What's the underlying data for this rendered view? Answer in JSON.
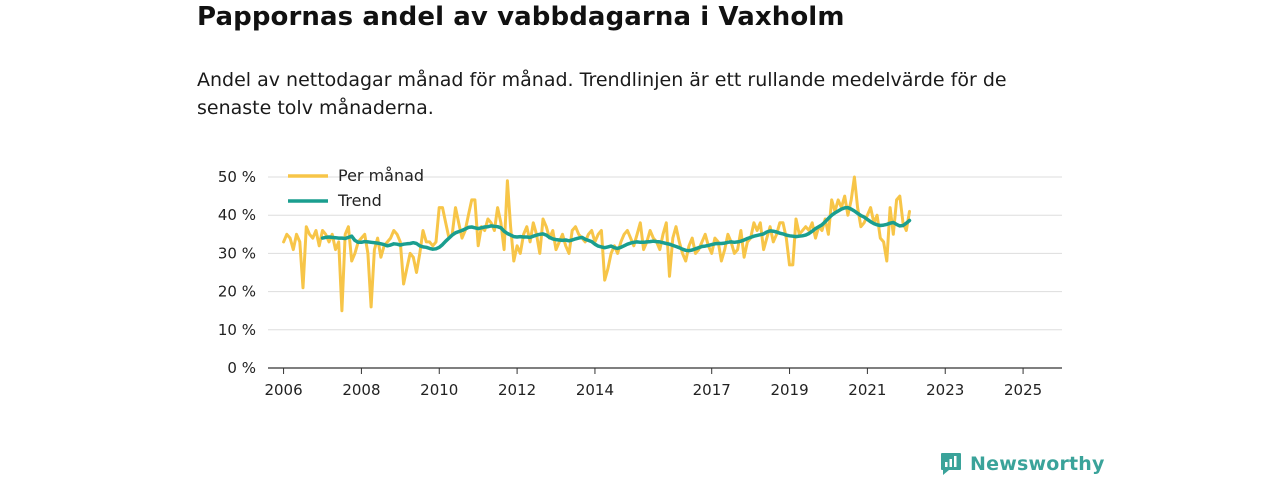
{
  "header": {
    "title": "Pappornas andel av vabbdagarna i Vaxholm",
    "subtitle": "Andel av nettodagar månad för månad. Trendlinjen är ett rullande medelvärde för de senaste tolv månaderna."
  },
  "brand": {
    "name": "Newsworthy",
    "icon": "newsworthy-logo-icon",
    "color": "#3aa39a"
  },
  "colors": {
    "monthly": "#f7c548",
    "trend": "#1a9e8f",
    "grid": "#dddddd",
    "axis": "#333333"
  },
  "chart_data": {
    "type": "line",
    "title": "Pappornas andel av vabbdagarna i Vaxholm",
    "xlabel": "",
    "ylabel": "",
    "ylim": [
      0,
      50
    ],
    "xlim": [
      2005.6,
      2026.0
    ],
    "yticks": [
      0,
      10,
      20,
      30,
      40,
      50
    ],
    "ytick_labels": [
      "0 %",
      "10 %",
      "20 %",
      "30 %",
      "40 %",
      "50 %"
    ],
    "xticks": [
      2006,
      2008,
      2010,
      2012,
      2014,
      2017,
      2019,
      2021,
      2023,
      2025
    ],
    "xtick_labels": [
      "2006",
      "2008",
      "2010",
      "2012",
      "2014",
      "2017",
      "2019",
      "2021",
      "2023",
      "2025"
    ],
    "legend": [
      "Per månad",
      "Trend"
    ],
    "legend_position": "top-left",
    "series": [
      {
        "name": "Per månad",
        "x_start": 2006.0,
        "step": 0.08333,
        "values": [
          33,
          35,
          34,
          31,
          35,
          33,
          21,
          37,
          35,
          34,
          36,
          32,
          36,
          35,
          33,
          35,
          31,
          33,
          15,
          35,
          37,
          28,
          30,
          33,
          34,
          35,
          30,
          16,
          31,
          34,
          29,
          32,
          33,
          34,
          36,
          35,
          33,
          22,
          26,
          30,
          29,
          25,
          30,
          36,
          33,
          33,
          32,
          33,
          42,
          42,
          38,
          34,
          35,
          42,
          38,
          34,
          36,
          40,
          44,
          44,
          32,
          37,
          36,
          39,
          38,
          36,
          42,
          38,
          31,
          49,
          37,
          28,
          32,
          30,
          35,
          37,
          33,
          38,
          35,
          30,
          39,
          37,
          34,
          36,
          31,
          33,
          35,
          32,
          30,
          36,
          37,
          35,
          34,
          33,
          35,
          36,
          33,
          35,
          36,
          23,
          26,
          30,
          32,
          30,
          33,
          35,
          36,
          34,
          32,
          35,
          38,
          31,
          33,
          36,
          34,
          33,
          31,
          35,
          38,
          24,
          34,
          37,
          33,
          30,
          28,
          32,
          34,
          30,
          31,
          33,
          35,
          32,
          30,
          34,
          33,
          28,
          31,
          35,
          33,
          30,
          31,
          36,
          29,
          33,
          34,
          38,
          36,
          38,
          31,
          34,
          37,
          33,
          35,
          38,
          38,
          34,
          27,
          27,
          39,
          35,
          36,
          37,
          36,
          38,
          34,
          37,
          36,
          39,
          35,
          44,
          41,
          44,
          42,
          45,
          40,
          44,
          50,
          42,
          37,
          38,
          40,
          42,
          38,
          40,
          34,
          33,
          28,
          42,
          35,
          44,
          45,
          38,
          36,
          41
        ]
      },
      {
        "name": "Trend",
        "x_start": 2007.0,
        "step": 0.08333,
        "values": [
          34,
          34.2,
          34.3,
          34.2,
          34.1,
          34,
          34,
          33.9,
          34.2,
          34.5,
          33.4,
          32.9,
          32.9,
          33.1,
          33.0,
          32.9,
          32.8,
          32.7,
          32.5,
          32.3,
          32.0,
          32.2,
          32.5,
          32.4,
          32.2,
          32.4,
          32.5,
          32.6,
          32.8,
          32.6,
          32.0,
          31.7,
          31.6,
          31.3,
          31.1,
          31.2,
          31.6,
          32.3,
          33.2,
          34.0,
          34.8,
          35.4,
          35.7,
          36.0,
          36.4,
          36.8,
          36.9,
          36.7,
          36.5,
          36.7,
          36.9,
          37.0,
          37.2,
          37.1,
          37.0,
          36.7,
          35.8,
          35.2,
          34.8,
          34.4,
          34.3,
          34.4,
          34.3,
          34.3,
          34.2,
          34.5,
          34.8,
          35.0,
          35.1,
          34.8,
          34.2,
          33.8,
          33.6,
          33.5,
          33.4,
          33.5,
          33.3,
          33.5,
          33.8,
          34.0,
          34.2,
          33.7,
          33.4,
          33.1,
          32.4,
          31.9,
          31.7,
          31.5,
          31.7,
          31.9,
          31.5,
          31.3,
          31.6,
          32.0,
          32.4,
          32.7,
          32.9,
          33.0,
          32.9,
          32.9,
          33.0,
          33.1,
          33.2,
          33.1,
          33.0,
          32.8,
          32.6,
          32.4,
          32.1,
          31.8,
          31.5,
          31.1,
          30.8,
          30.7,
          30.9,
          31.2,
          31.5,
          31.8,
          31.9,
          32.1,
          32.3,
          32.5,
          32.6,
          32.6,
          32.7,
          32.9,
          33.0,
          32.9,
          33.0,
          33.2,
          33.5,
          33.9,
          34.2,
          34.5,
          34.7,
          34.9,
          35.1,
          35.6,
          35.9,
          35.8,
          35.6,
          35.3,
          35.1,
          34.8,
          34.6,
          34.5,
          34.4,
          34.5,
          34.6,
          34.8,
          35.2,
          35.8,
          36.5,
          37.0,
          37.5,
          38.3,
          39.2,
          40.0,
          40.6,
          41.1,
          41.6,
          41.9,
          42.0,
          41.6,
          41.1,
          40.5,
          39.9,
          39.5,
          38.9,
          38.3,
          37.8,
          37.5,
          37.3,
          37.4,
          37.6,
          37.9,
          38.1,
          37.6,
          37.2,
          37.3,
          37.9,
          38.6
        ]
      }
    ]
  }
}
